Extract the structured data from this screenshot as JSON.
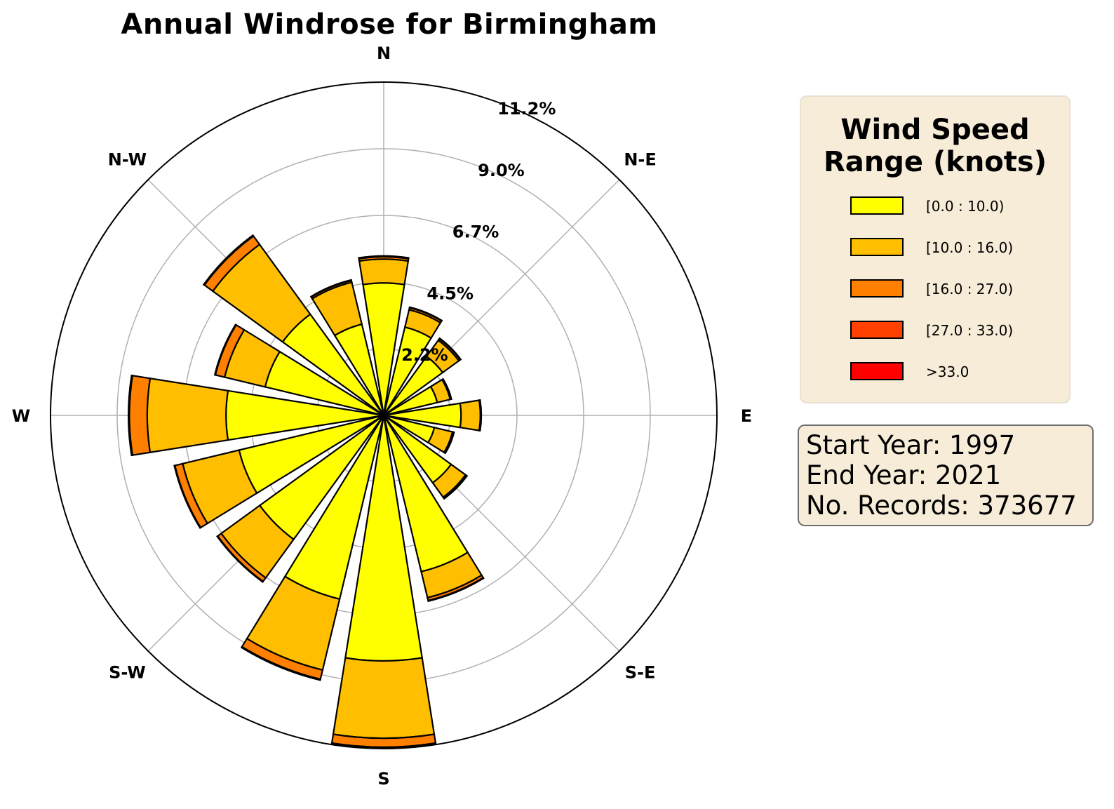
{
  "chart_data": {
    "type": "windrose",
    "title": "Annual Windrose for Birmingham",
    "directions": [
      "N",
      "N-E",
      "E",
      "S-E",
      "S",
      "S-W",
      "W",
      "N-W"
    ],
    "radial_ticks": [
      "2.2%",
      "4.5%",
      "6.7%",
      "9.0%",
      "11.2%"
    ],
    "radial_tick_values": [
      2.24,
      4.48,
      6.72,
      8.96,
      11.2
    ],
    "rmax": 11.2,
    "legend_title": "Wind Speed Range (knots)",
    "bins": [
      "[0.0 : 10.0)",
      "[10.0 : 16.0)",
      "[16.0 : 27.0)",
      "[27.0 : 33.0)",
      ">33.0"
    ],
    "bin_colors": [
      "#ffff00",
      "#ffbf00",
      "#ff8000",
      "#ff4000",
      "#ff0000"
    ],
    "sectors": [
      {
        "direction": 0,
        "cumulative": [
          4.45,
          5.25,
          5.33,
          5.36,
          5.36
        ]
      },
      {
        "direction": 22.5,
        "cumulative": [
          3.05,
          3.65,
          3.72,
          3.74,
          3.74
        ]
      },
      {
        "direction": 45,
        "cumulative": [
          2.45,
          3.12,
          3.18,
          3.2,
          3.2
        ]
      },
      {
        "direction": 67.5,
        "cumulative": [
          1.85,
          2.3,
          2.33,
          2.34,
          2.34
        ]
      },
      {
        "direction": 90,
        "cumulative": [
          2.6,
          3.25,
          3.27,
          3.28,
          3.28
        ]
      },
      {
        "direction": 112.5,
        "cumulative": [
          1.75,
          2.38,
          2.42,
          2.43,
          2.43
        ]
      },
      {
        "direction": 135,
        "cumulative": [
          2.8,
          3.4,
          3.45,
          3.46,
          3.46
        ]
      },
      {
        "direction": 157.5,
        "cumulative": [
          5.4,
          6.3,
          6.4,
          6.42,
          6.42
        ]
      },
      {
        "direction": 180,
        "cumulative": [
          8.25,
          10.85,
          11.15,
          11.17,
          11.17
        ]
      },
      {
        "direction": 202.5,
        "cumulative": [
          6.35,
          8.8,
          9.12,
          9.15,
          9.15
        ]
      },
      {
        "direction": 225,
        "cumulative": [
          5.15,
          6.75,
          6.9,
          6.92,
          6.92
        ]
      },
      {
        "direction": 247.5,
        "cumulative": [
          5.0,
          6.95,
          7.22,
          7.24,
          7.24
        ]
      },
      {
        "direction": 270,
        "cumulative": [
          5.3,
          7.95,
          8.55,
          8.58,
          8.58
        ]
      },
      {
        "direction": 292.5,
        "cumulative": [
          4.1,
          5.5,
          5.82,
          5.84,
          5.84
        ]
      },
      {
        "direction": 315,
        "cumulative": [
          4.2,
          7.1,
          7.45,
          7.48,
          7.48
        ]
      },
      {
        "direction": 337.5,
        "cumulative": [
          3.15,
          4.6,
          4.66,
          4.68,
          4.68
        ]
      }
    ],
    "grid": true
  },
  "info": {
    "start": "Start Year: 1997",
    "end": "End Year: 2021",
    "records": "No. Records: 373677"
  }
}
